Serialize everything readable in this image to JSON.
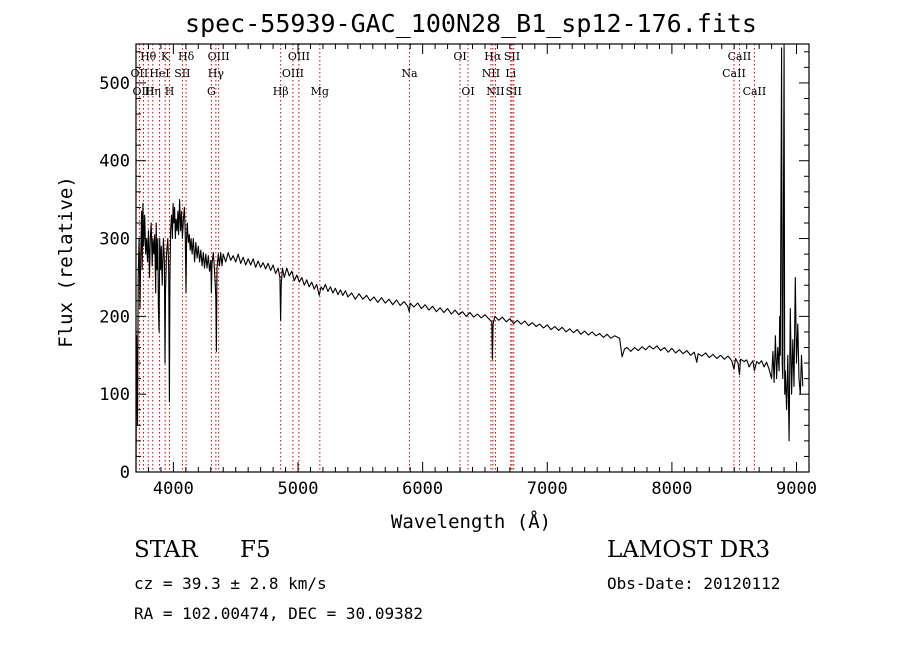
{
  "chart_data": {
    "type": "line",
    "title": "spec-55939-GAC_100N28_B1_sp12-176.fits",
    "xlabel": "Wavelength (Å)",
    "ylabel": "Flux (relative)",
    "xlim": [
      3700,
      9100
    ],
    "ylim": [
      0,
      550
    ],
    "xticks": [
      4000,
      5000,
      6000,
      7000,
      8000,
      9000
    ],
    "yticks": [
      0,
      100,
      200,
      300,
      400,
      500
    ],
    "line_color": "#000000",
    "marker_color": "#cc0000",
    "spectrum": {
      "name": "flux",
      "points": [
        [
          3700,
          0
        ],
        [
          3705,
          175
        ],
        [
          3712,
          60
        ],
        [
          3718,
          250
        ],
        [
          3725,
          300
        ],
        [
          3732,
          210
        ],
        [
          3738,
          275
        ],
        [
          3745,
          335
        ],
        [
          3750,
          260
        ],
        [
          3755,
          345
        ],
        [
          3762,
          290
        ],
        [
          3770,
          330
        ],
        [
          3778,
          280
        ],
        [
          3786,
          300
        ],
        [
          3792,
          270
        ],
        [
          3800,
          310
        ],
        [
          3808,
          250
        ],
        [
          3815,
          300
        ],
        [
          3822,
          320
        ],
        [
          3830,
          265
        ],
        [
          3836,
          300
        ],
        [
          3843,
          280
        ],
        [
          3850,
          305
        ],
        [
          3858,
          230
        ],
        [
          3862,
          320
        ],
        [
          3868,
          260
        ],
        [
          3875,
          300
        ],
        [
          3880,
          210
        ],
        [
          3885,
          180
        ],
        [
          3890,
          300
        ],
        [
          3897,
          260
        ],
        [
          3903,
          290
        ],
        [
          3910,
          240
        ],
        [
          3920,
          300
        ],
        [
          3928,
          270
        ],
        [
          3933,
          140
        ],
        [
          3937,
          230
        ],
        [
          3945,
          280
        ],
        [
          3955,
          300
        ],
        [
          3962,
          260
        ],
        [
          3968,
          90
        ],
        [
          3972,
          240
        ],
        [
          3978,
          310
        ],
        [
          3985,
          330
        ],
        [
          3992,
          300
        ],
        [
          3998,
          345
        ],
        [
          4004,
          320
        ],
        [
          4010,
          340
        ],
        [
          4016,
          300
        ],
        [
          4022,
          325
        ],
        [
          4030,
          310
        ],
        [
          4036,
          335
        ],
        [
          4042,
          305
        ],
        [
          4050,
          350
        ],
        [
          4058,
          310
        ],
        [
          4065,
          335
        ],
        [
          4072,
          300
        ],
        [
          4080,
          325
        ],
        [
          4088,
          340
        ],
        [
          4095,
          310
        ],
        [
          4101,
          230
        ],
        [
          4106,
          300
        ],
        [
          4112,
          320
        ],
        [
          4120,
          295
        ],
        [
          4128,
          305
        ],
        [
          4135,
          285
        ],
        [
          4142,
          300
        ],
        [
          4150,
          280
        ],
        [
          4160,
          300
        ],
        [
          4170,
          270
        ],
        [
          4180,
          295
        ],
        [
          4190,
          275
        ],
        [
          4200,
          290
        ],
        [
          4210,
          270
        ],
        [
          4220,
          285
        ],
        [
          4230,
          265
        ],
        [
          4240,
          282
        ],
        [
          4250,
          262
        ],
        [
          4260,
          280
        ],
        [
          4270,
          262
        ],
        [
          4280,
          278
        ],
        [
          4290,
          258
        ],
        [
          4300,
          272
        ],
        [
          4305,
          230
        ],
        [
          4310,
          268
        ],
        [
          4320,
          282
        ],
        [
          4330,
          260
        ],
        [
          4340,
          225
        ],
        [
          4345,
          155
        ],
        [
          4350,
          262
        ],
        [
          4360,
          280
        ],
        [
          4370,
          265
        ],
        [
          4380,
          282
        ],
        [
          4390,
          265
        ],
        [
          4400,
          280
        ],
        [
          4420,
          270
        ],
        [
          4440,
          282
        ],
        [
          4460,
          272
        ],
        [
          4480,
          278
        ],
        [
          4500,
          270
        ],
        [
          4520,
          280
        ],
        [
          4540,
          268
        ],
        [
          4560,
          276
        ],
        [
          4580,
          266
        ],
        [
          4600,
          274
        ],
        [
          4620,
          266
        ],
        [
          4640,
          274
        ],
        [
          4660,
          263
        ],
        [
          4680,
          271
        ],
        [
          4700,
          263
        ],
        [
          4720,
          269
        ],
        [
          4740,
          261
        ],
        [
          4760,
          268
        ],
        [
          4780,
          259
        ],
        [
          4800,
          266
        ],
        [
          4820,
          255
        ],
        [
          4840,
          262
        ],
        [
          4855,
          250
        ],
        [
          4860,
          195
        ],
        [
          4865,
          240
        ],
        [
          4875,
          262
        ],
        [
          4890,
          250
        ],
        [
          4910,
          262
        ],
        [
          4930,
          252
        ],
        [
          4950,
          258
        ],
        [
          4970,
          246
        ],
        [
          4990,
          253
        ],
        [
          5010,
          244
        ],
        [
          5030,
          250
        ],
        [
          5050,
          240
        ],
        [
          5070,
          247
        ],
        [
          5090,
          238
        ],
        [
          5110,
          244
        ],
        [
          5130,
          235
        ],
        [
          5150,
          241
        ],
        [
          5170,
          227
        ],
        [
          5185,
          238
        ],
        [
          5200,
          234
        ],
        [
          5220,
          241
        ],
        [
          5240,
          232
        ],
        [
          5260,
          238
        ],
        [
          5280,
          230
        ],
        [
          5300,
          236
        ],
        [
          5320,
          228
        ],
        [
          5340,
          234
        ],
        [
          5360,
          227
        ],
        [
          5380,
          233
        ],
        [
          5400,
          225
        ],
        [
          5430,
          230
        ],
        [
          5460,
          222
        ],
        [
          5490,
          229
        ],
        [
          5520,
          222
        ],
        [
          5550,
          227
        ],
        [
          5580,
          220
        ],
        [
          5610,
          225
        ],
        [
          5640,
          218
        ],
        [
          5670,
          224
        ],
        [
          5700,
          217
        ],
        [
          5730,
          222
        ],
        [
          5760,
          215
        ],
        [
          5790,
          221
        ],
        [
          5820,
          214
        ],
        [
          5850,
          219
        ],
        [
          5880,
          213
        ],
        [
          5893,
          206
        ],
        [
          5900,
          217
        ],
        [
          5930,
          212
        ],
        [
          5960,
          217
        ],
        [
          5990,
          210
        ],
        [
          6020,
          215
        ],
        [
          6050,
          208
        ],
        [
          6080,
          213
        ],
        [
          6110,
          206
        ],
        [
          6140,
          211
        ],
        [
          6170,
          205
        ],
        [
          6200,
          210
        ],
        [
          6230,
          203
        ],
        [
          6260,
          208
        ],
        [
          6290,
          202
        ],
        [
          6320,
          206
        ],
        [
          6350,
          200
        ],
        [
          6380,
          205
        ],
        [
          6410,
          199
        ],
        [
          6440,
          203
        ],
        [
          6470,
          198
        ],
        [
          6500,
          202
        ],
        [
          6530,
          197
        ],
        [
          6555,
          193
        ],
        [
          6560,
          145
        ],
        [
          6565,
          190
        ],
        [
          6580,
          200
        ],
        [
          6610,
          195
        ],
        [
          6640,
          199
        ],
        [
          6670,
          193
        ],
        [
          6700,
          197
        ],
        [
          6730,
          191
        ],
        [
          6760,
          195
        ],
        [
          6790,
          190
        ],
        [
          6820,
          194
        ],
        [
          6850,
          188
        ],
        [
          6880,
          192
        ],
        [
          6910,
          187
        ],
        [
          6940,
          190
        ],
        [
          6970,
          185
        ],
        [
          7000,
          189
        ],
        [
          7030,
          183
        ],
        [
          7060,
          187
        ],
        [
          7090,
          182
        ],
        [
          7120,
          186
        ],
        [
          7150,
          180
        ],
        [
          7180,
          184
        ],
        [
          7210,
          179
        ],
        [
          7240,
          183
        ],
        [
          7270,
          177
        ],
        [
          7300,
          181
        ],
        [
          7330,
          176
        ],
        [
          7360,
          180
        ],
        [
          7390,
          175
        ],
        [
          7420,
          178
        ],
        [
          7450,
          173
        ],
        [
          7480,
          177
        ],
        [
          7510,
          172
        ],
        [
          7540,
          175
        ],
        [
          7580,
          172
        ],
        [
          7600,
          148
        ],
        [
          7620,
          158
        ],
        [
          7640,
          160
        ],
        [
          7670,
          155
        ],
        [
          7700,
          160
        ],
        [
          7730,
          156
        ],
        [
          7760,
          161
        ],
        [
          7790,
          157
        ],
        [
          7820,
          162
        ],
        [
          7850,
          158
        ],
        [
          7880,
          162
        ],
        [
          7910,
          156
        ],
        [
          7940,
          160
        ],
        [
          7970,
          154
        ],
        [
          8000,
          159
        ],
        [
          8030,
          153
        ],
        [
          8060,
          157
        ],
        [
          8090,
          152
        ],
        [
          8120,
          156
        ],
        [
          8150,
          150
        ],
        [
          8180,
          154
        ],
        [
          8200,
          141
        ],
        [
          8210,
          152
        ],
        [
          8240,
          149
        ],
        [
          8270,
          153
        ],
        [
          8300,
          147
        ],
        [
          8330,
          151
        ],
        [
          8360,
          146
        ],
        [
          8390,
          150
        ],
        [
          8420,
          145
        ],
        [
          8450,
          149
        ],
        [
          8480,
          143
        ],
        [
          8498,
          132
        ],
        [
          8510,
          146
        ],
        [
          8530,
          140
        ],
        [
          8542,
          125
        ],
        [
          8550,
          145
        ],
        [
          8580,
          142
        ],
        [
          8600,
          144
        ],
        [
          8620,
          135
        ],
        [
          8630,
          138
        ],
        [
          8650,
          143
        ],
        [
          8662,
          130
        ],
        [
          8680,
          142
        ],
        [
          8700,
          139
        ],
        [
          8720,
          143
        ],
        [
          8740,
          135
        ],
        [
          8760,
          141
        ],
        [
          8780,
          132
        ],
        [
          8800,
          120
        ],
        [
          8810,
          155
        ],
        [
          8820,
          115
        ],
        [
          8830,
          175
        ],
        [
          8840,
          120
        ],
        [
          8850,
          160
        ],
        [
          8860,
          130
        ],
        [
          8865,
          200
        ],
        [
          8870,
          150
        ],
        [
          8880,
          545
        ],
        [
          8885,
          140
        ],
        [
          8890,
          120
        ],
        [
          8900,
          545
        ],
        [
          8905,
          100
        ],
        [
          8910,
          130
        ],
        [
          8920,
          80
        ],
        [
          8930,
          150
        ],
        [
          8940,
          40
        ],
        [
          8950,
          210
        ],
        [
          8960,
          100
        ],
        [
          8970,
          170
        ],
        [
          8980,
          110
        ],
        [
          8990,
          250
        ],
        [
          9000,
          140
        ],
        [
          9010,
          190
        ],
        [
          9020,
          120
        ],
        [
          9030,
          100
        ],
        [
          9040,
          150
        ],
        [
          9050,
          110
        ]
      ]
    },
    "line_markers": [
      {
        "label": "Hθ",
        "wavelength": 3798,
        "row": 0
      },
      {
        "label": "OII",
        "wavelength": 3727,
        "row": 1
      },
      {
        "label": "OIII",
        "wavelength": 3760,
        "row": 2
      },
      {
        "label": "K",
        "wavelength": 3934,
        "row": 0
      },
      {
        "label": "HeI",
        "wavelength": 3889,
        "row": 1
      },
      {
        "label": "Hη",
        "wavelength": 3835,
        "row": 2
      },
      {
        "label": "SII",
        "wavelength": 4072,
        "row": 1
      },
      {
        "label": "Hδ",
        "wavelength": 4102,
        "row": 0
      },
      {
        "label": "H",
        "wavelength": 3969,
        "row": 2
      },
      {
        "label": "OIII",
        "wavelength": 4363,
        "row": 0
      },
      {
        "label": "Hγ",
        "wavelength": 4341,
        "row": 1
      },
      {
        "label": "G",
        "wavelength": 4305,
        "row": 2
      },
      {
        "label": "OIII",
        "wavelength": 5007,
        "row": 0
      },
      {
        "label": "OIII",
        "wavelength": 4959,
        "row": 1
      },
      {
        "label": "Hβ",
        "wavelength": 4861,
        "row": 2
      },
      {
        "label": "Mg",
        "wavelength": 5175,
        "row": 2
      },
      {
        "label": "Na",
        "wavelength": 5894,
        "row": 1
      },
      {
        "label": "OI",
        "wavelength": 6300,
        "row": 0
      },
      {
        "label": "OI",
        "wavelength": 6364,
        "row": 2
      },
      {
        "label": "Hα",
        "wavelength": 6563,
        "row": 0
      },
      {
        "label": "NII",
        "wavelength": 6548,
        "row": 1
      },
      {
        "label": "NII",
        "wavelength": 6584,
        "row": 2
      },
      {
        "label": "SII",
        "wavelength": 6717,
        "row": 0
      },
      {
        "label": "Li",
        "wavelength": 6707,
        "row": 1
      },
      {
        "label": "SII",
        "wavelength": 6731,
        "row": 2
      },
      {
        "label": "CaII",
        "wavelength": 8542,
        "row": 0
      },
      {
        "label": "CaII",
        "wavelength": 8498,
        "row": 1
      },
      {
        "label": "CaII",
        "wavelength": 8662,
        "row": 2
      }
    ]
  },
  "info": {
    "object_class": "STAR",
    "subclass": "F5",
    "survey": "LAMOST DR3",
    "redshift_text": "cz = 39.3 ± 2.8 km/s",
    "obs_date_text": "Obs-Date: 20120112",
    "coords_text": "RA = 102.00474, DEC =  30.09382"
  }
}
